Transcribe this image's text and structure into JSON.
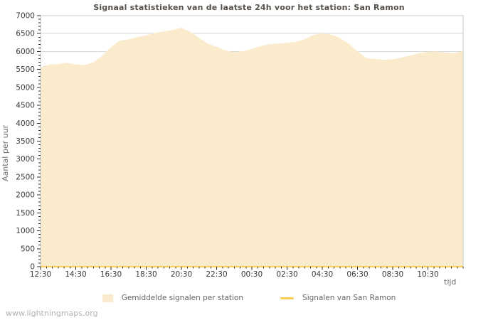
{
  "page": {
    "watermark": "www.lightningmaps.org"
  },
  "chart_data": {
    "type": "area",
    "title": "Signaal statistieken van de laatste 24h voor het station: San Ramon",
    "ylabel": "Aantal per uur",
    "xlabel": "tijd",
    "ylim": [
      0,
      7000
    ],
    "y_major_step": 500,
    "y_minor_step": 100,
    "grid": "horizontal-major",
    "legend_position": "bottom",
    "y_tick_labels": [
      "0",
      "500",
      "1000",
      "1500",
      "2000",
      "2500",
      "3000",
      "3500",
      "4000",
      "4500",
      "5000",
      "5500",
      "6000",
      "6500",
      "7000"
    ],
    "x_tick_labels": [
      "12:30",
      "14:30",
      "16:30",
      "18:30",
      "20:30",
      "22:30",
      "00:30",
      "02:30",
      "04:30",
      "06:30",
      "08:30",
      "10:30"
    ],
    "x_tick_hours": [
      0,
      2,
      4,
      6,
      8,
      10,
      12,
      14,
      16,
      18,
      20,
      22
    ],
    "x_minor_step_hours": 0.3333,
    "x_span_hours": 24,
    "x_times": [
      "12:30",
      "13:00",
      "13:30",
      "14:00",
      "14:30",
      "15:00",
      "15:30",
      "16:00",
      "16:30",
      "17:00",
      "17:30",
      "18:00",
      "18:30",
      "19:00",
      "19:30",
      "20:00",
      "20:30",
      "21:00",
      "21:30",
      "22:00",
      "22:30",
      "23:00",
      "23:30",
      "00:00",
      "00:30",
      "01:00",
      "01:30",
      "02:00",
      "02:30",
      "03:00",
      "03:30",
      "04:00",
      "04:30",
      "05:00",
      "05:30",
      "06:00",
      "06:30",
      "07:00",
      "07:30",
      "08:00",
      "08:30",
      "09:00",
      "09:30",
      "10:00",
      "10:30",
      "11:00",
      "11:30",
      "12:00",
      "12:30"
    ],
    "series": [
      {
        "name": "Gemiddelde signalen per station",
        "type": "area",
        "color": "#FAEBCD",
        "values": [
          5560,
          5640,
          5650,
          5690,
          5640,
          5620,
          5700,
          5880,
          6120,
          6300,
          6340,
          6400,
          6450,
          6520,
          6560,
          6600,
          6660,
          6550,
          6380,
          6220,
          6130,
          6030,
          5980,
          6010,
          6070,
          6150,
          6200,
          6220,
          6240,
          6270,
          6340,
          6460,
          6510,
          6470,
          6380,
          6220,
          6000,
          5820,
          5790,
          5770,
          5780,
          5830,
          5890,
          5950,
          5990,
          6000,
          5970,
          5950,
          6010
        ]
      },
      {
        "name": "Signalen van San Ramon",
        "type": "line",
        "color": "#F9CB4E",
        "values": [
          0,
          0,
          0,
          0,
          0,
          0,
          0,
          0,
          0,
          0,
          0,
          0,
          0,
          0,
          0,
          0,
          0,
          0,
          0,
          0,
          0,
          0,
          0,
          0,
          0,
          0,
          0,
          0,
          0,
          0,
          0,
          0,
          0,
          0,
          0,
          0,
          0,
          0,
          0,
          0,
          0,
          0,
          0,
          0,
          0,
          0,
          0,
          0,
          0
        ]
      }
    ],
    "colors": {
      "gridline": "#d6d6d6",
      "plot_border": "#c9c9c9",
      "tick": "#2a2a2a",
      "tick_label": "#3a3a3a"
    }
  }
}
